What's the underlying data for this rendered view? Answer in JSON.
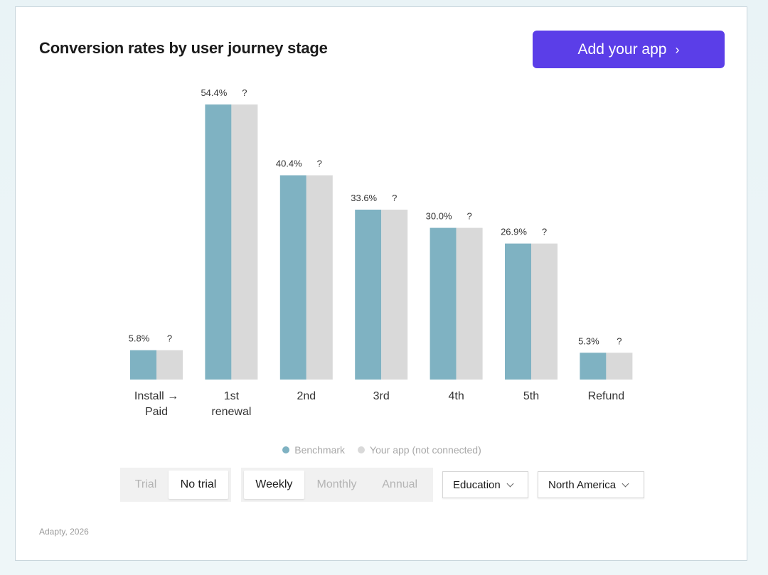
{
  "header": {
    "title": "Conversion rates by user journey stage",
    "add_app_label": "Add your app",
    "add_app_chevron": "›"
  },
  "chart_data": {
    "type": "bar",
    "categories": [
      "Install → Paid",
      "1st renewal",
      "2nd",
      "3rd",
      "4th",
      "5th",
      "Refund"
    ],
    "series": [
      {
        "name": "Benchmark",
        "values": [
          5.8,
          54.4,
          40.4,
          33.6,
          30.0,
          26.9,
          5.3
        ],
        "labels": [
          "5.8%",
          "54.4%",
          "40.4%",
          "33.6%",
          "30.0%",
          "26.9%",
          "5.3%"
        ],
        "color": "#7fb2c2"
      },
      {
        "name": "Your app (not connected)",
        "values": [
          5.8,
          54.4,
          40.4,
          33.6,
          30.0,
          26.9,
          5.3
        ],
        "labels": [
          "?",
          "?",
          "?",
          "?",
          "?",
          "?",
          "?"
        ],
        "color": "#d9d9d9"
      }
    ],
    "ylim": [
      0,
      60
    ],
    "title": "Conversion rates by user journey stage",
    "xlabel": "",
    "ylabel": ""
  },
  "legend": [
    {
      "label": "Benchmark",
      "color": "#7fb2c2"
    },
    {
      "label": "Your app (not connected)",
      "color": "#d9d9d9"
    }
  ],
  "filters": {
    "trial": {
      "options": [
        "Trial",
        "No trial"
      ],
      "selected": "No trial"
    },
    "period": {
      "options": [
        "Weekly",
        "Monthly",
        "Annual"
      ],
      "selected": "Weekly"
    },
    "category": "Education",
    "region": "North America"
  },
  "footer": "Adapty, 2026"
}
